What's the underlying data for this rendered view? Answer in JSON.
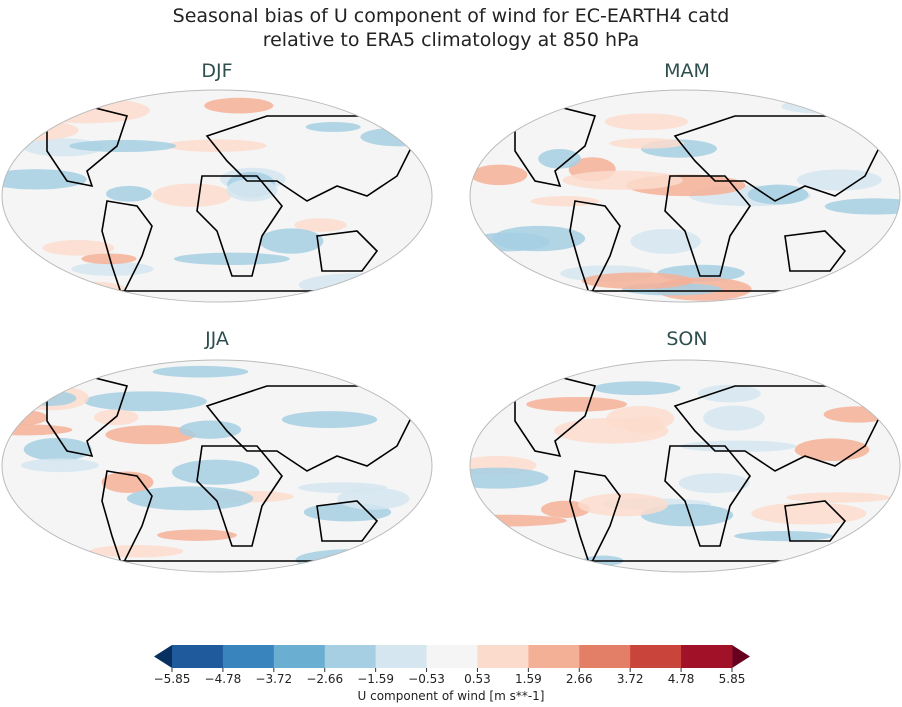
{
  "title_line1": "Seasonal bias of U component of wind for EC-EARTH4 catd",
  "title_line2": "relative to ERA5 climatology at 850 hPa",
  "panels": [
    {
      "label": "DJF"
    },
    {
      "label": "MAM"
    },
    {
      "label": "JJA"
    },
    {
      "label": "SON"
    }
  ],
  "colorbar": {
    "label": "U component of wind [m s**-1]",
    "ticks": [
      "−5.85",
      "−4.78",
      "−3.72",
      "−2.66",
      "−1.59",
      "−0.53",
      "0.53",
      "1.59",
      "2.66",
      "3.72",
      "4.78",
      "5.85"
    ],
    "colors": [
      "#1f5a9d",
      "#3a84bd",
      "#6aaed2",
      "#a6cfe3",
      "#d5e6f0",
      "#f5f5f5",
      "#fbdccc",
      "#f4b096",
      "#e47f67",
      "#c9443b",
      "#a11228"
    ],
    "under_color": "#073061",
    "over_color": "#67001f",
    "extend": "both",
    "colormap": "RdBu_r"
  }
}
